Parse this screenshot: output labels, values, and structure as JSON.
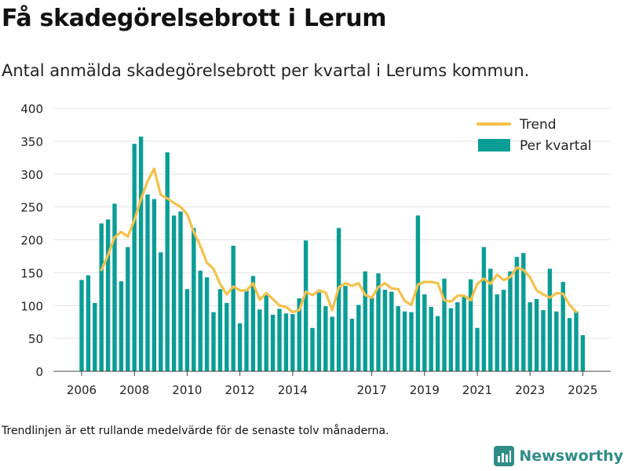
{
  "header": {
    "title": "Få skadegörelsebrott i Lerum",
    "subtitle": "Antal anmälda skadegörelsebrott per kvartal i Lerums kommun."
  },
  "footer": {
    "note": "Trendlinjen är ett rullande medelvärde för de senaste tolv månaderna.",
    "brand": "Newsworthy"
  },
  "colors": {
    "bars": "#0a9d96",
    "trend": "#f5c04a",
    "brand": "#2f8c87"
  },
  "chart_data": {
    "type": "bar",
    "title": "",
    "xlabel": "",
    "ylabel": "",
    "ylim": [
      0,
      400
    ],
    "yticks": [
      0,
      50,
      100,
      150,
      200,
      250,
      300,
      350,
      400
    ],
    "xticks": [
      {
        "year": 2006,
        "label": "2006"
      },
      {
        "year": 2008,
        "label": "2008"
      },
      {
        "year": 2010,
        "label": "2010"
      },
      {
        "year": 2012,
        "label": "2012"
      },
      {
        "year": 2014,
        "label": "2014"
      },
      {
        "year": 2017,
        "label": "2017"
      },
      {
        "year": 2019,
        "label": "2019"
      },
      {
        "year": 2021,
        "label": "2021"
      },
      {
        "year": 2023,
        "label": "2023"
      },
      {
        "year": 2025,
        "label": "2025"
      }
    ],
    "legend": {
      "placement": "top-right",
      "trend_label": "Trend",
      "bars_label": "Per kvartal"
    },
    "grid": true,
    "start_year": 2006,
    "series": [
      {
        "name": "Per kvartal",
        "type": "bar",
        "values": [
          139,
          146,
          104,
          225,
          231,
          255,
          137,
          189,
          346,
          357,
          269,
          262,
          181,
          333,
          237,
          243,
          125,
          218,
          153,
          143,
          90,
          125,
          104,
          191,
          73,
          123,
          145,
          94,
          116,
          86,
          95,
          88,
          87,
          111,
          199,
          66,
          120,
          99,
          83,
          218,
          130,
          80,
          101,
          152,
          112,
          149,
          124,
          121,
          99,
          91,
          90,
          237,
          117,
          98,
          84,
          141,
          96,
          105,
          115,
          140,
          66,
          189,
          156,
          117,
          124,
          152,
          174,
          180,
          105,
          110,
          93,
          156,
          91,
          136,
          81,
          91,
          55
        ]
      },
      {
        "name": "Trend",
        "type": "line",
        "start_index": 3,
        "values": [
          154,
          177,
          204,
          212,
          205,
          230,
          262,
          289,
          308,
          268,
          263,
          256,
          250,
          239,
          212,
          191,
          165,
          156,
          133,
          117,
          129,
          123,
          123,
          134,
          109,
          119,
          110,
          100,
          98,
          90,
          93,
          121,
          116,
          123,
          120,
          93,
          128,
          134,
          130,
          134,
          116,
          112,
          128,
          134,
          126,
          125,
          107,
          101,
          132,
          136,
          136,
          134,
          108,
          106,
          115,
          115,
          108,
          133,
          141,
          133,
          147,
          139,
          143,
          158,
          154,
          143,
          123,
          117,
          112,
          119,
          118,
          101,
          90
        ]
      }
    ]
  }
}
